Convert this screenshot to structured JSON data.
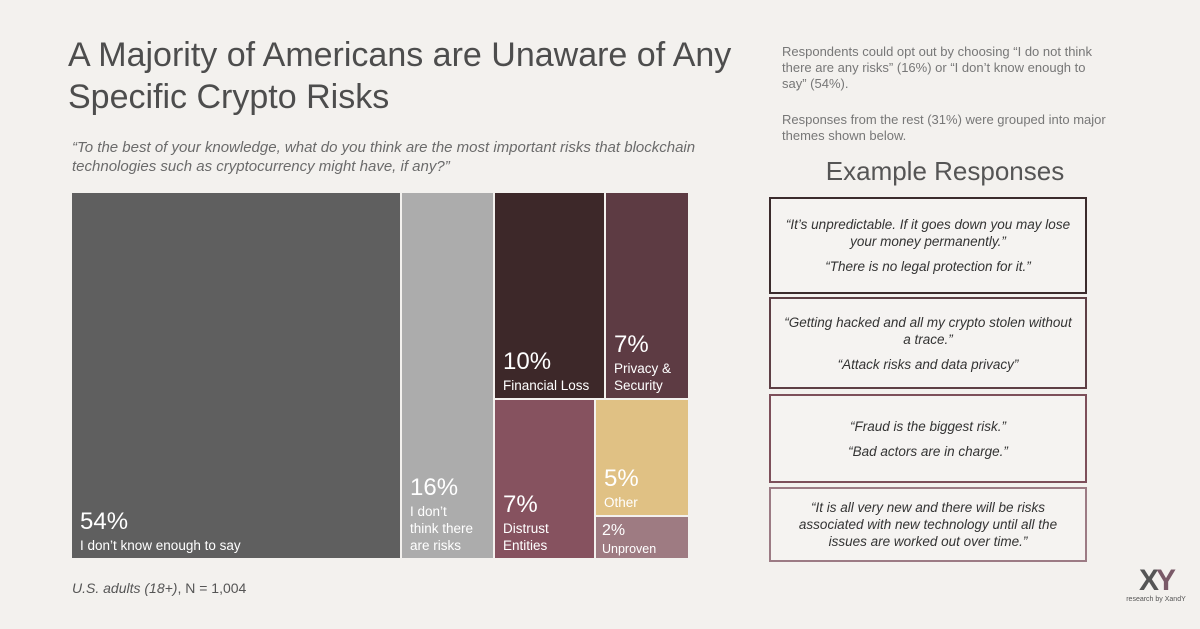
{
  "header": {
    "title": "A Majority of Americans are Unaware of Any Specific Crypto Risks",
    "question": "“To the best of your knowledge, what do you think are the most important risks that blockchain technologies such as cryptocurrency might have, if any?”"
  },
  "notes": {
    "opt_out": "Respondents could opt out by choosing “I do not think there are any risks” (16%) or “I don’t know enough to say” (54%).",
    "grouped": "Responses from the rest (31%) were grouped into major themes shown below."
  },
  "examples": {
    "title": "Example Responses",
    "boxes": [
      {
        "quotes": [
          "“It’s unpredictable. If it goes down you may lose your money permanently.”",
          "“There is no legal protection for it.”"
        ],
        "border": "#3b2b2c"
      },
      {
        "quotes": [
          "“Getting hacked and all my crypto stolen without a trace.”",
          "“Attack risks and data privacy”"
        ],
        "border": "#5e3f45"
      },
      {
        "quotes": [
          "“Fraud is the biggest risk.”",
          "“Bad actors are in charge.”"
        ],
        "border": "#7d4f5a"
      },
      {
        "quotes": [
          "“It is all very new and there will be risks associated with new technology until all the issues are worked out over time.”"
        ],
        "border": "#9c7b84"
      }
    ]
  },
  "footnote": {
    "population": "U.S. adults (18+)",
    "sample": ", N = 1,004"
  },
  "logo": {
    "mark_x": "X",
    "mark_y": "Y",
    "sub": "research by XandY"
  },
  "chart_data": {
    "type": "treemap",
    "unit": "%",
    "nodes": [
      {
        "label": "I don’t know enough to say",
        "value": 54,
        "color": "#5f5f5f"
      },
      {
        "label": "I don’t think there are risks",
        "value": 16,
        "color": "#acacac"
      },
      {
        "label": "Financial Loss",
        "value": 10,
        "color": "#3d2829"
      },
      {
        "label": "Privacy & Security",
        "value": 7,
        "color": "#5d3b43"
      },
      {
        "label": "Distrust Entities",
        "value": 7,
        "color": "#86525f"
      },
      {
        "label": "Other",
        "value": 5,
        "color": "#e0c184"
      },
      {
        "label": "Unproven",
        "value": 2,
        "color": "#9e7b82"
      }
    ]
  }
}
